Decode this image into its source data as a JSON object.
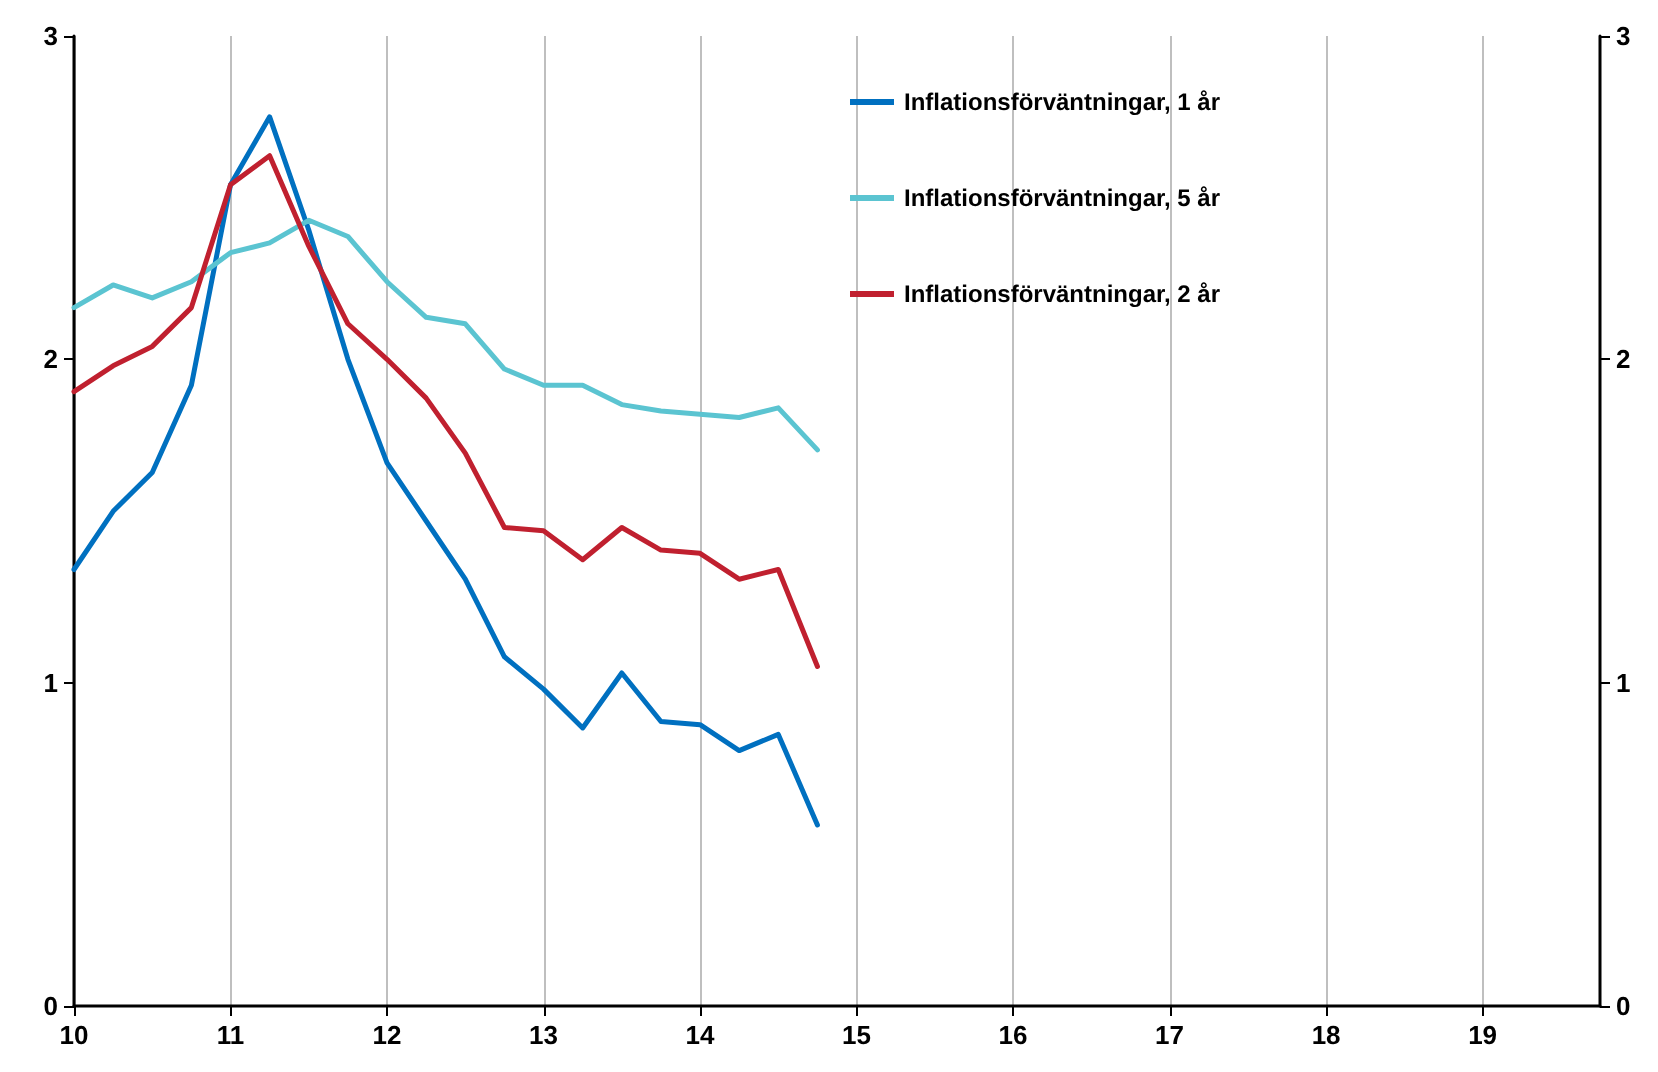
{
  "chart_data": {
    "type": "line",
    "x": [
      10,
      10.25,
      10.5,
      10.75,
      11,
      11.25,
      11.5,
      11.75,
      12,
      12.25,
      12.5,
      12.75,
      13,
      13.25,
      13.5,
      13.75,
      14,
      14.25,
      14.5,
      14.75
    ],
    "series": [
      {
        "name": "Inflationsförväntningar, 1 år",
        "color": "#0070c0",
        "values": [
          1.35,
          1.53,
          1.65,
          1.92,
          2.54,
          2.75,
          2.4,
          2.0,
          1.68,
          1.5,
          1.32,
          1.08,
          0.98,
          0.86,
          1.03,
          0.88,
          0.87,
          0.79,
          0.84,
          0.56
        ]
      },
      {
        "name": "Inflationsförväntningar, 5 år",
        "color": "#5bc4d1",
        "values": [
          2.16,
          2.23,
          2.19,
          2.24,
          2.33,
          2.36,
          2.43,
          2.38,
          2.24,
          2.13,
          2.11,
          1.97,
          1.92,
          1.92,
          1.86,
          1.84,
          1.83,
          1.82,
          1.85,
          1.72
        ]
      },
      {
        "name": "Inflationsförväntningar, 2 år",
        "color": "#c0202f",
        "values": [
          1.9,
          1.98,
          2.04,
          2.16,
          2.54,
          2.63,
          2.35,
          2.11,
          2.0,
          1.88,
          1.71,
          1.48,
          1.47,
          1.38,
          1.48,
          1.41,
          1.4,
          1.32,
          1.35,
          1.05
        ]
      }
    ],
    "xlim": [
      10,
      19.75
    ],
    "xticks": [
      10,
      11,
      12,
      13,
      14,
      15,
      16,
      17,
      18,
      19
    ],
    "ylim": [
      0,
      3
    ],
    "yticks": [
      0,
      1,
      2,
      3
    ],
    "y2lim": [
      0,
      3
    ],
    "y2ticks": [
      0,
      1,
      2,
      3
    ],
    "grid": "x",
    "legend": "top right",
    "marker": "none",
    "line_style": "solid"
  }
}
